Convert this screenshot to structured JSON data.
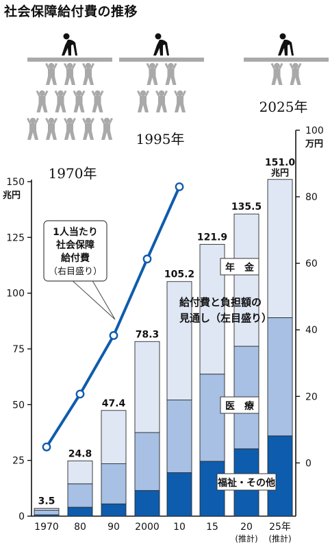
{
  "title": "社会保障給付費の推移",
  "chart_data": {
    "type": "bar",
    "stacked": true,
    "categories": [
      "1970",
      "80",
      "90",
      "2000",
      "10",
      "15",
      "20",
      "25年"
    ],
    "category_sublabels": [
      "",
      "",
      "",
      "",
      "",
      "",
      "(推計)",
      "(推計)"
    ],
    "totals": [
      3.5,
      24.8,
      47.4,
      78.3,
      105.2,
      121.9,
      135.5,
      151.0
    ],
    "total_unit_label": "兆円",
    "series": [
      {
        "name": "福祉・その他",
        "color": "#0e5cad",
        "values": [
          0.6,
          4.0,
          5.5,
          11.5,
          19.5,
          24.6,
          30.2,
          36.0
        ]
      },
      {
        "name": "医　療",
        "color": "#a7c0e4",
        "values": [
          2.1,
          10.5,
          18.0,
          26.0,
          32.6,
          39.1,
          46.0,
          53.0
        ]
      },
      {
        "name": "年　金",
        "color": "#dfe7f5",
        "values": [
          0.8,
          10.3,
          23.9,
          40.8,
          53.1,
          58.2,
          59.3,
          62.0
        ]
      }
    ],
    "annotation_stack": [
      "給付費と負担額の",
      "見通し（左目盛り）"
    ],
    "y_left": {
      "unit": "兆円",
      "max_label": "150",
      "ticks": [
        0,
        25,
        50,
        75,
        100,
        125,
        150
      ],
      "ylim": [
        0,
        150
      ]
    },
    "y_right": {
      "unit": "万円",
      "max_label": "100",
      "ticks": [
        0,
        20,
        40,
        60,
        80,
        100
      ],
      "ylim": [
        -16,
        100
      ]
    },
    "line": {
      "name_lines": [
        "1人当たり",
        "社会保障",
        "給付費"
      ],
      "axis_note": "（右目盛り）",
      "color": "#0e5cad",
      "values_right": [
        4.8,
        20.7,
        38.3,
        61.3,
        83.0
      ]
    }
  },
  "pictograms": [
    {
      "year_label": "1970年"
    },
    {
      "year_label": "1995年"
    },
    {
      "year_label": "2025年"
    }
  ]
}
